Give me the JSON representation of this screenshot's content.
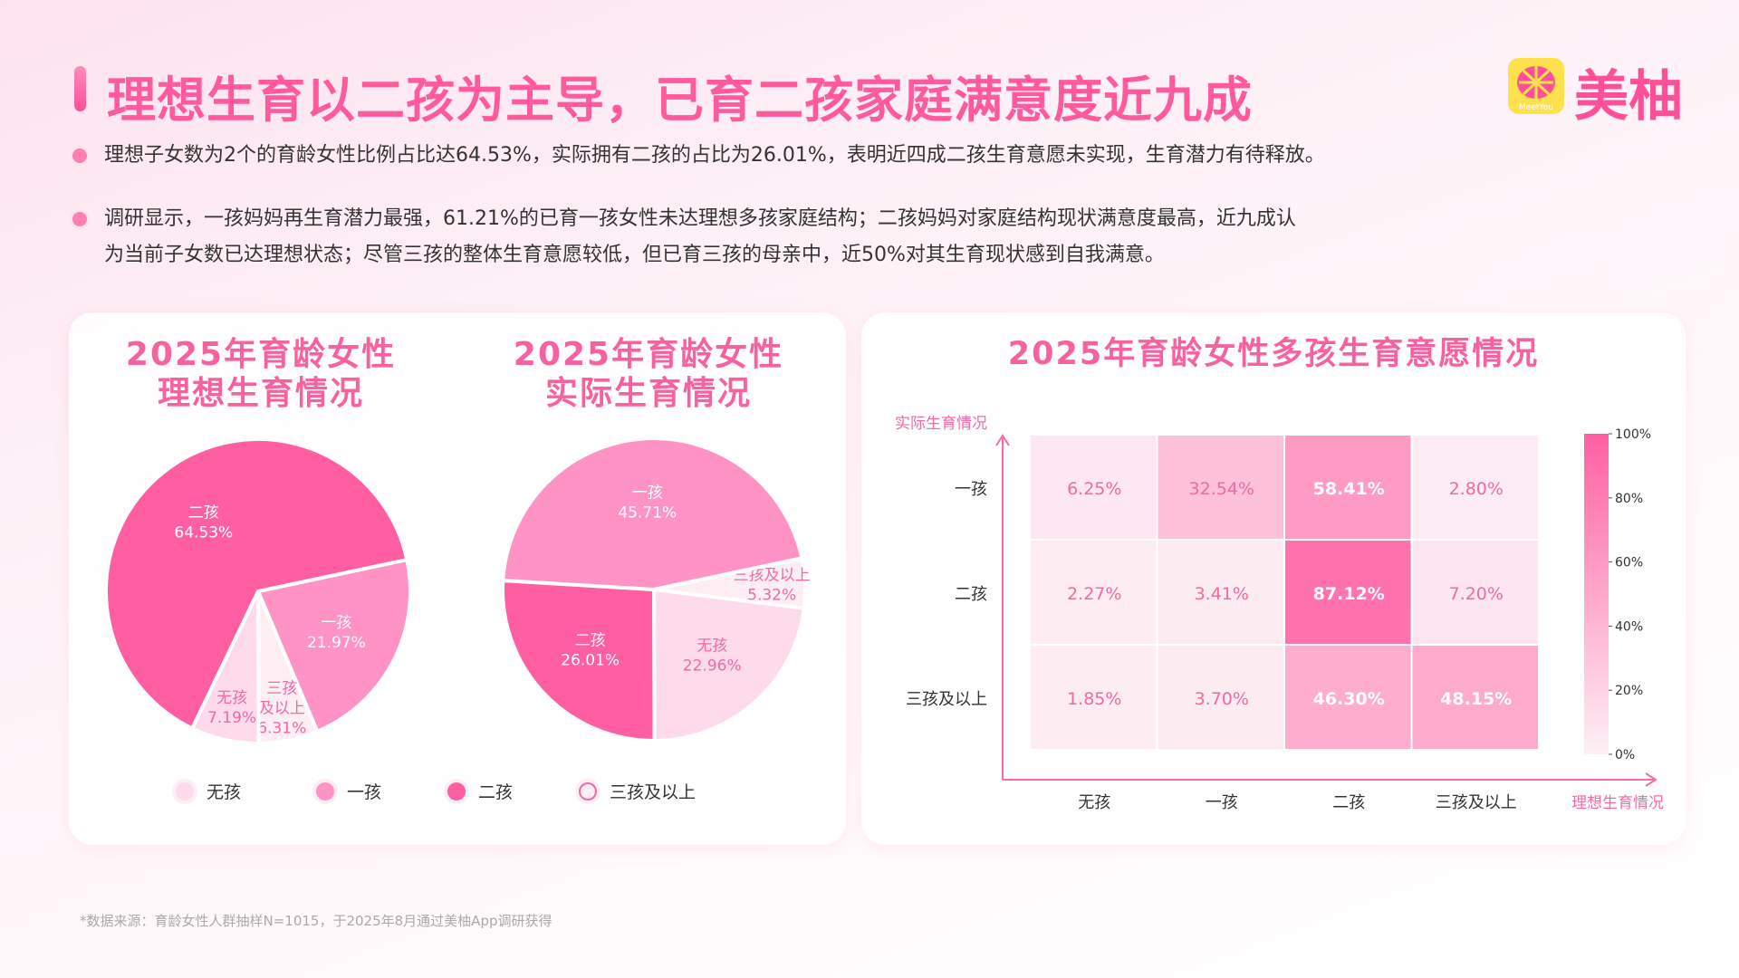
{
  "header": {
    "title": "理想生育以二孩为主导，已育二孩家庭满意度近九成",
    "logo_text": "美柚",
    "logo_badge": "MeetYou"
  },
  "bullets": [
    {
      "lines": [
        "理想子女数为2个的育龄女性比例占比达64.53%，实际拥有二孩的占比为26.01%，表明近四成二孩生育意愿未实现，生育潜力有待释放。"
      ]
    },
    {
      "lines": [
        "调研显示，一孩妈妈再生育潜力最强，61.21%的已育一孩女性未达理想多孩家庭结构；二孩妈妈对家庭结构现状满意度最高，近九成认",
        "为当前子女数已达理想状态；尽管三孩的整体生育意愿较低，但已育三孩的母亲中，近50%对其生育现状感到自我满意。"
      ]
    }
  ],
  "colors": {
    "无孩": "#fedbea",
    "一孩": "#ff93c5",
    "二孩": "#ff5fa2",
    "三孩及以上": "#fdeef4",
    "accent": "#ff5a9e"
  },
  "legend": [
    "无孩",
    "一孩",
    "二孩",
    "三孩及以上"
  ],
  "chart_data": [
    {
      "type": "pie",
      "title": "2025年育龄女性\n理想生育情况",
      "title_lines": [
        "2025年育龄女性",
        "理想生育情况"
      ],
      "slices": [
        {
          "label": "一孩",
          "value": 21.97,
          "display": "21.97%"
        },
        {
          "label": "三孩及以上",
          "value": 6.31,
          "display": "6.31%"
        },
        {
          "label": "无孩",
          "value": 7.19,
          "display": "7.19%"
        },
        {
          "label": "二孩",
          "value": 64.53,
          "display": "64.53%"
        }
      ]
    },
    {
      "type": "pie",
      "title": "2025年育龄女性\n实际生育情况",
      "title_lines": [
        "2025年育龄女性",
        "实际生育情况"
      ],
      "slices": [
        {
          "label": "三孩及以上",
          "value": 5.32,
          "display": "5.32%"
        },
        {
          "label": "无孩",
          "value": 22.96,
          "display": "22.96%"
        },
        {
          "label": "二孩",
          "value": 26.01,
          "display": "26.01%"
        },
        {
          "label": "一孩",
          "value": 45.71,
          "display": "45.71%"
        }
      ]
    },
    {
      "type": "heatmap",
      "title": "2025年育龄女性多孩生育意愿情况",
      "xlabel": "理想生育情况",
      "ylabel": "实际生育情况",
      "x": [
        "无孩",
        "一孩",
        "二孩",
        "三孩及以上"
      ],
      "y": [
        "一孩",
        "二孩",
        "三孩及以上"
      ],
      "values": [
        [
          6.25,
          32.54,
          58.41,
          2.8
        ],
        [
          2.27,
          3.41,
          87.12,
          7.2
        ],
        [
          1.85,
          3.7,
          46.3,
          48.15
        ]
      ],
      "colorbar": {
        "range": [
          0,
          100
        ],
        "ticks": [
          "100%",
          "80%",
          "60%",
          "40%",
          "20%",
          "0%"
        ]
      }
    }
  ],
  "footnote": "*数据来源：育龄女性人群抽样N=1015，于2025年8月通过美柚App调研获得"
}
